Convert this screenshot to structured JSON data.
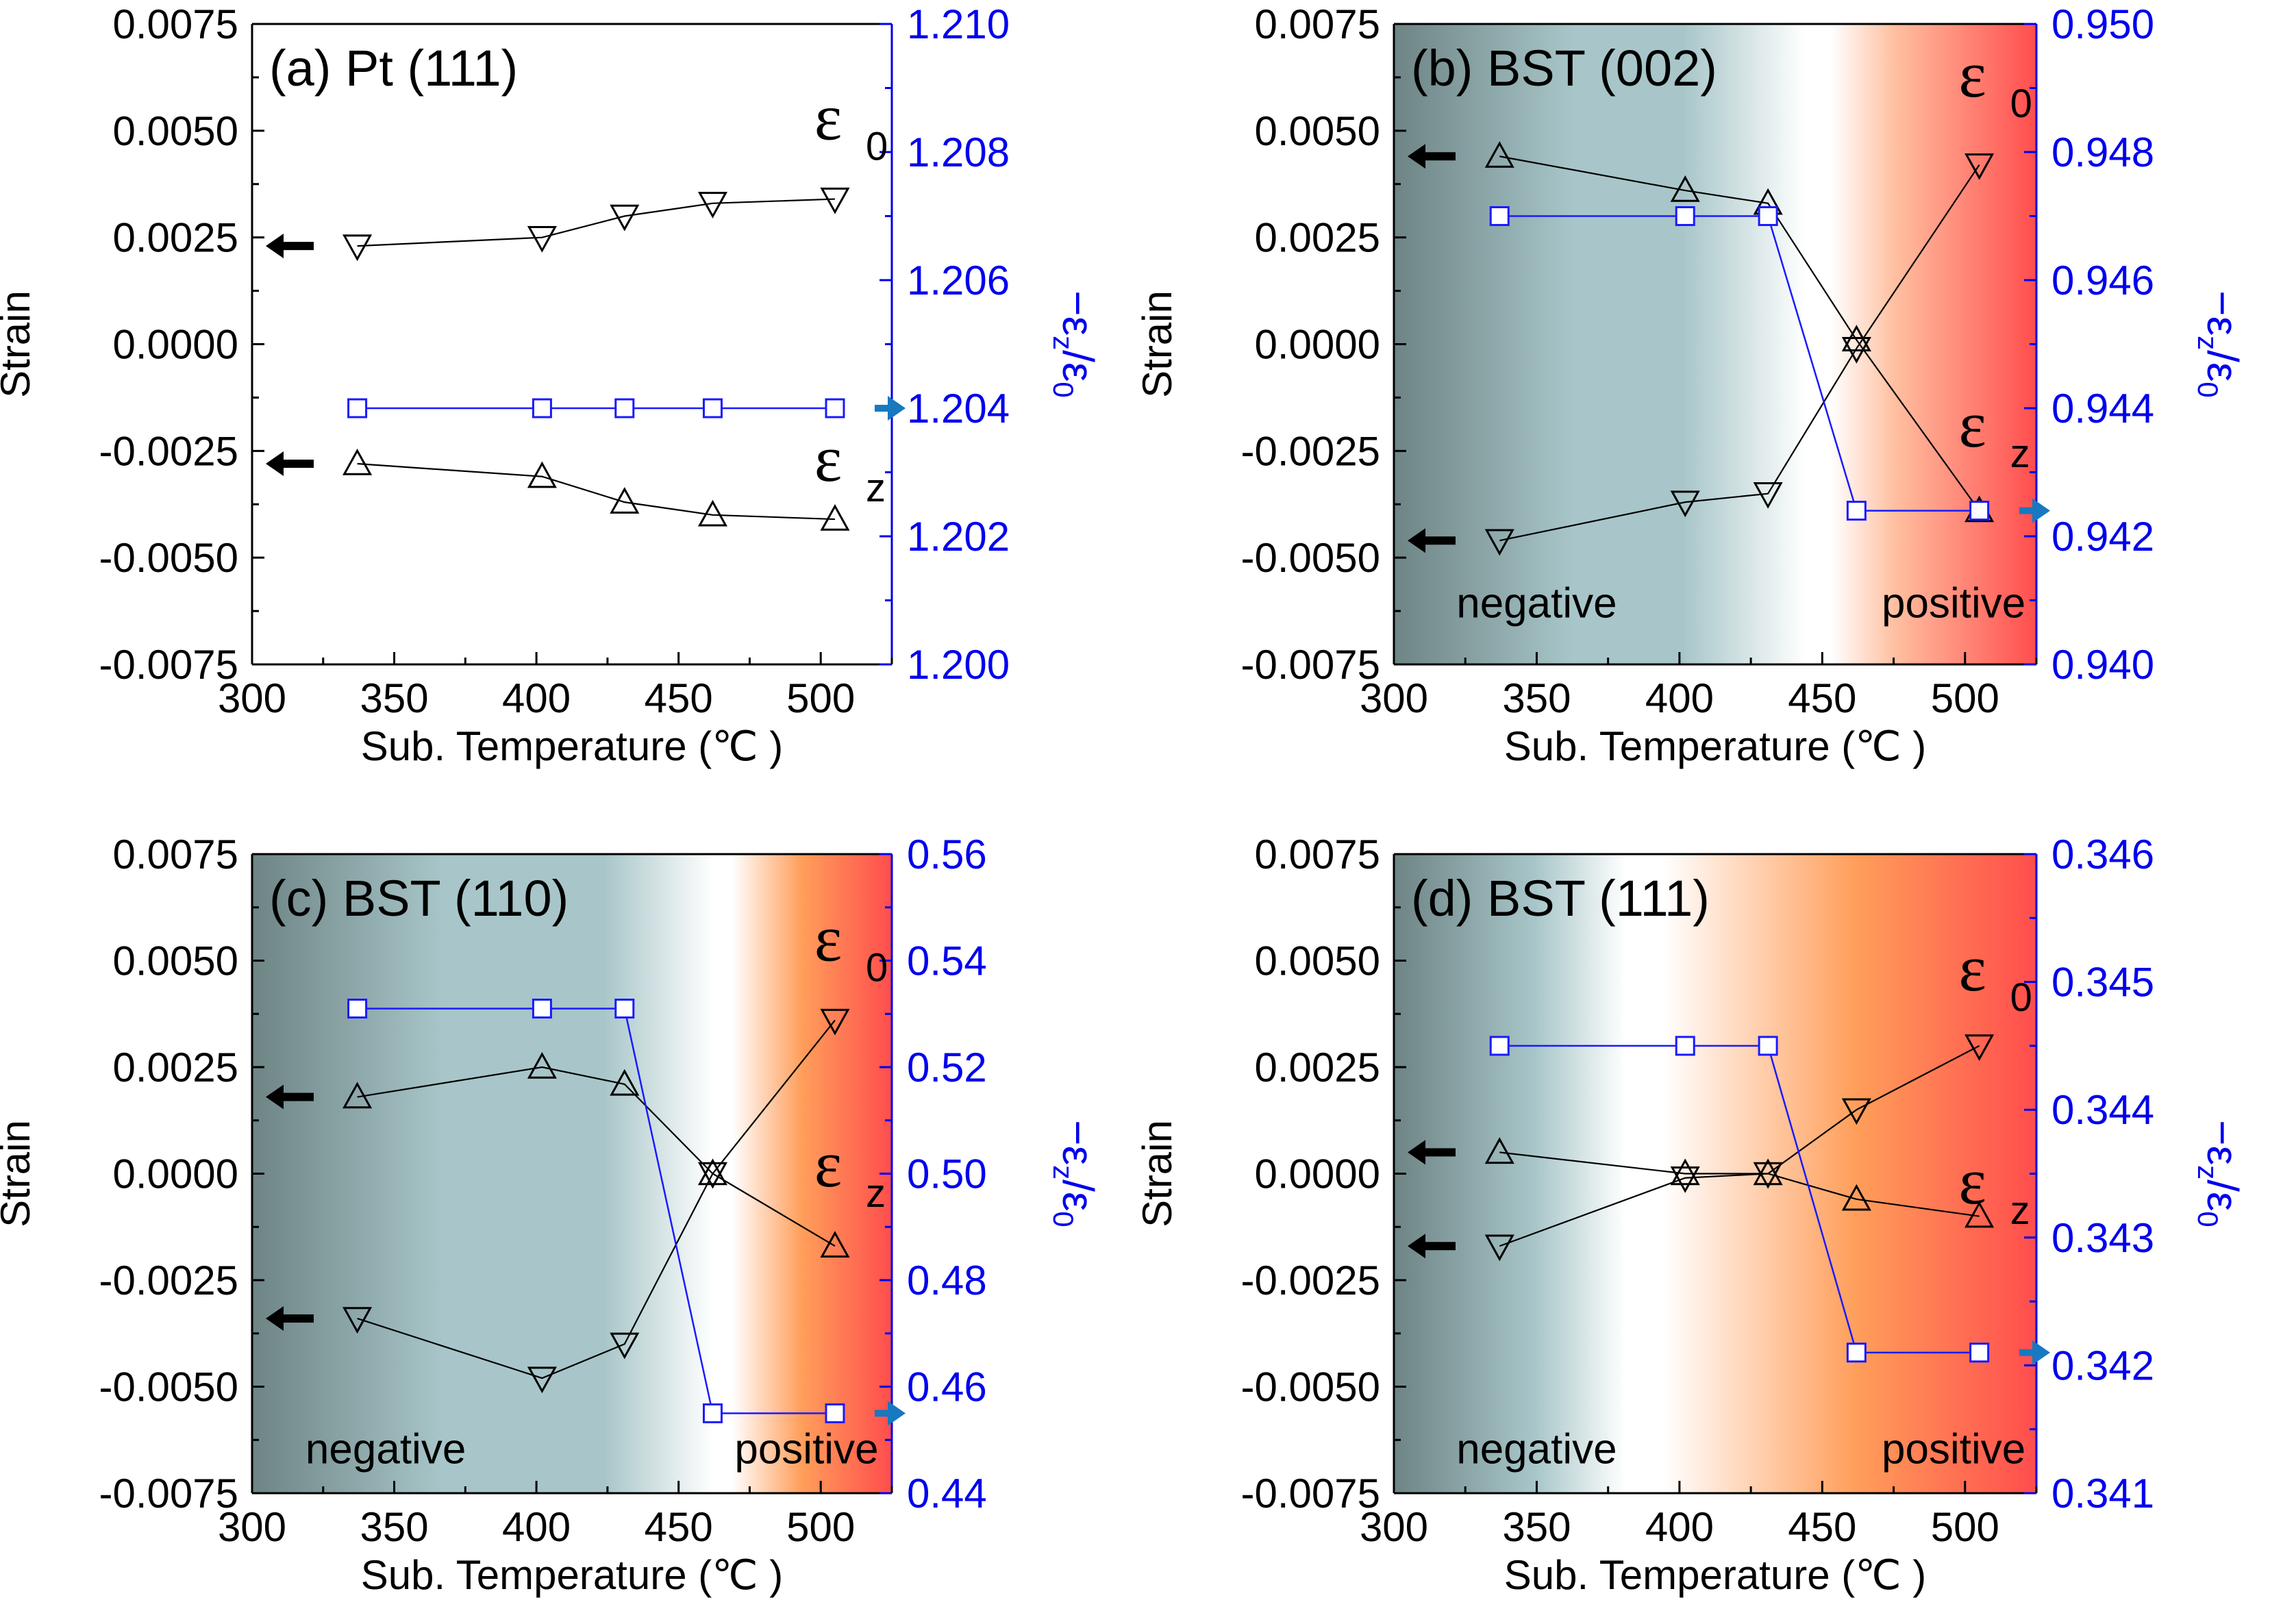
{
  "colors": {
    "axis": "#000000",
    "right_axis": "#0000ee",
    "ratio_series": "#1a1aff",
    "strain_series": "#000000",
    "arrow_black": "#000000",
    "arrow_blue": "#1878c0",
    "grad_negative": "#6e8485",
    "grad_mid": "#a8c6c9",
    "grad_white": "#ffffff",
    "grad_peach": "#ffbfa0",
    "grad_orange": "#ff9e5a",
    "grad_red": "#ff4d4d"
  },
  "labels": {
    "strain": "Strain",
    "xlabel": "Sub. Temperature (℃ )",
    "negative": "negative",
    "positive": "positive",
    "eps": "ε",
    "sub0": "0",
    "subz": "z",
    "ratio_main": "−ε",
    "ratio_slash": "/ε"
  },
  "chart_data": [
    {
      "panel": "a",
      "title": "(a) Pt (111)",
      "type": "line",
      "xlabel": "Sub. Temperature (℃ )",
      "ylabel": "Strain",
      "ylabel_right": "−εz/ε0",
      "xlim": [
        300,
        525
      ],
      "xticks": [
        300,
        350,
        400,
        450,
        500
      ],
      "ylim": [
        -0.0075,
        0.0075
      ],
      "yticks": [
        "-0.0075",
        "-0.0050",
        "-0.0025",
        "0.0000",
        "0.0025",
        "0.0050",
        "0.0075"
      ],
      "ylim_right": [
        1.2,
        1.21
      ],
      "yticks_right": [
        "1.200",
        "1.202",
        "1.204",
        "1.206",
        "1.208",
        "1.210"
      ],
      "background": "none",
      "x": [
        337,
        402,
        431,
        462,
        505
      ],
      "series": [
        {
          "name": "ε0",
          "marker": "triangle-down",
          "axis": "left",
          "values": [
            0.0023,
            0.0025,
            0.003,
            0.0033,
            0.0034
          ]
        },
        {
          "name": "εz",
          "marker": "triangle-up",
          "axis": "left",
          "values": [
            -0.0028,
            -0.0031,
            -0.0037,
            -0.004,
            -0.0041
          ]
        },
        {
          "name": "−εz/ε0",
          "marker": "square",
          "axis": "right",
          "values": [
            1.204,
            1.204,
            1.204,
            1.204,
            1.204
          ]
        }
      ],
      "annotations": {
        "eps0_label": {
          "x": 505,
          "y": 0.0048
        },
        "epsz_label": {
          "x": 505,
          "y": -0.0032
        },
        "left_arrows": [
          0.0023,
          -0.0028
        ],
        "right_arrow": 1.204
      }
    },
    {
      "panel": "b",
      "title": "(b) BST (002)",
      "type": "line",
      "xlabel": "Sub. Temperature (℃ )",
      "ylabel": "Strain",
      "ylabel_right": "−εz/ε0",
      "xlim": [
        300,
        525
      ],
      "xticks": [
        300,
        350,
        400,
        450,
        500
      ],
      "ylim": [
        -0.0075,
        0.0075
      ],
      "yticks": [
        "-0.0075",
        "-0.0050",
        "-0.0025",
        "0.0000",
        "0.0025",
        "0.0050",
        "0.0075"
      ],
      "ylim_right": [
        0.94,
        0.95
      ],
      "yticks_right": [
        "0.940",
        "0.942",
        "0.944",
        "0.946",
        "0.948",
        "0.950"
      ],
      "background": "gradient-b",
      "x": [
        337,
        402,
        431,
        462,
        505
      ],
      "series": [
        {
          "name": "ε0",
          "marker": "triangle-down",
          "axis": "left",
          "values": [
            -0.0046,
            -0.0037,
            -0.0035,
            -0.0001,
            0.0042
          ]
        },
        {
          "name": "εz",
          "marker": "triangle-up",
          "axis": "left",
          "values": [
            0.0044,
            0.0036,
            0.0033,
            0.0001,
            -0.0039
          ]
        },
        {
          "name": "−εz/ε0",
          "marker": "square",
          "axis": "right",
          "values": [
            0.947,
            0.947,
            0.947,
            0.9424,
            0.9424
          ]
        }
      ],
      "annotations": {
        "eps0_label": {
          "x": 505,
          "y": 0.0058
        },
        "epsz_label": {
          "x": 505,
          "y": -0.0024
        },
        "left_arrows": [
          0.0044,
          -0.0046
        ],
        "right_arrow": 0.9424,
        "negative_label": {
          "x": 350,
          "y": -0.0064
        },
        "positive_label": {
          "x": 496,
          "y": -0.0064
        }
      }
    },
    {
      "panel": "c",
      "title": "(c) BST (110)",
      "type": "line",
      "xlabel": "Sub. Temperature (℃ )",
      "ylabel": "Strain",
      "ylabel_right": "−εz/ε0",
      "xlim": [
        300,
        525
      ],
      "xticks": [
        300,
        350,
        400,
        450,
        500
      ],
      "ylim": [
        -0.0075,
        0.0075
      ],
      "yticks": [
        "-0.0075",
        "-0.0050",
        "-0.0025",
        "0.0000",
        "0.0025",
        "0.0050",
        "0.0075"
      ],
      "ylim_right": [
        0.44,
        0.56
      ],
      "yticks_right": [
        "0.44",
        "0.46",
        "0.48",
        "0.50",
        "0.52",
        "0.54",
        "0.56"
      ],
      "background": "gradient-c",
      "x": [
        337,
        402,
        431,
        462,
        505
      ],
      "series": [
        {
          "name": "ε0",
          "marker": "triangle-down",
          "axis": "left",
          "values": [
            -0.0034,
            -0.0048,
            -0.004,
            0.0,
            0.0036
          ]
        },
        {
          "name": "εz",
          "marker": "triangle-up",
          "axis": "left",
          "values": [
            0.0018,
            0.0025,
            0.0021,
            0.0,
            -0.0017
          ]
        },
        {
          "name": "−εz/ε0",
          "marker": "square",
          "axis": "right",
          "values": [
            0.531,
            0.531,
            0.531,
            0.455,
            0.455
          ]
        }
      ],
      "annotations": {
        "eps0_label": {
          "x": 505,
          "y": 0.005
        },
        "epsz_label": {
          "x": 505,
          "y": -0.0003
        },
        "left_arrows": [
          0.0018,
          -0.0034
        ],
        "right_arrow": 0.455,
        "negative_label": {
          "x": 347,
          "y": -0.0068
        },
        "positive_label": {
          "x": 495,
          "y": -0.0068
        }
      }
    },
    {
      "panel": "d",
      "title": "(d) BST (111)",
      "type": "line",
      "xlabel": "Sub. Temperature (℃ )",
      "ylabel": "Strain",
      "ylabel_right": "−εz/ε0",
      "xlim": [
        300,
        525
      ],
      "xticks": [
        300,
        350,
        400,
        450,
        500
      ],
      "ylim": [
        -0.0075,
        0.0075
      ],
      "yticks": [
        "-0.0075",
        "-0.0050",
        "-0.0025",
        "0.0000",
        "0.0025",
        "0.0050",
        "0.0075"
      ],
      "ylim_right": [
        0.341,
        0.346
      ],
      "yticks_right": [
        "0.341",
        "0.342",
        "0.343",
        "0.344",
        "0.345",
        "0.346"
      ],
      "background": "gradient-d",
      "x": [
        337,
        402,
        431,
        462,
        505
      ],
      "series": [
        {
          "name": "ε0",
          "marker": "triangle-down",
          "axis": "left",
          "values": [
            -0.0017,
            -0.0001,
            0.0,
            0.0015,
            0.003
          ]
        },
        {
          "name": "εz",
          "marker": "triangle-up",
          "axis": "left",
          "values": [
            0.0005,
            0.0,
            0.0,
            -0.0006,
            -0.001
          ]
        },
        {
          "name": "−εz/ε0",
          "marker": "square",
          "axis": "right",
          "values": [
            0.3445,
            0.3445,
            0.3445,
            0.3421,
            0.3421
          ]
        }
      ],
      "annotations": {
        "eps0_label": {
          "x": 505,
          "y": 0.0043
        },
        "epsz_label": {
          "x": 505,
          "y": -0.0007
        },
        "left_arrows": [
          0.0005,
          -0.0017
        ],
        "right_arrow": 0.3421,
        "negative_label": {
          "x": 350,
          "y": -0.0068
        },
        "positive_label": {
          "x": 496,
          "y": -0.0068
        }
      }
    }
  ]
}
